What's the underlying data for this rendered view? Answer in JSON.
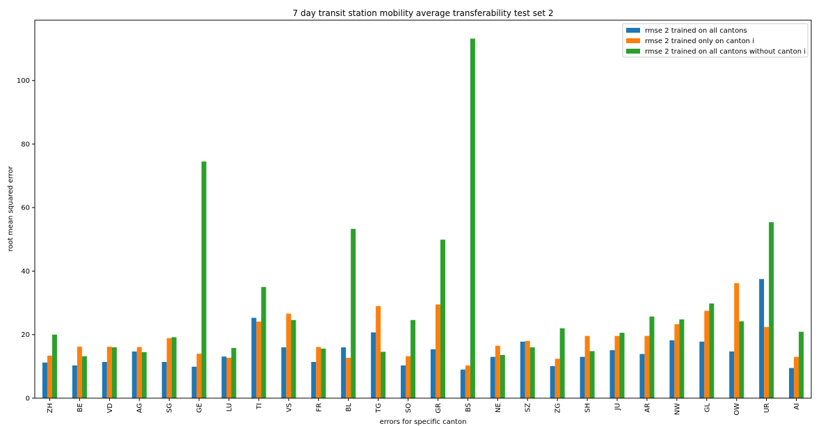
{
  "chart_data": {
    "type": "bar",
    "title": "7 day transit station mobility average transferability test set 2",
    "xlabel": "errors for specific canton",
    "ylabel": "root mean squared error",
    "ylim": [
      0,
      119
    ],
    "yticks": [
      0,
      20,
      40,
      60,
      80,
      100
    ],
    "grid": false,
    "legend_position": "top-right",
    "categories": [
      "ZH",
      "BE",
      "VD",
      "AG",
      "SG",
      "GE",
      "LU",
      "TI",
      "VS",
      "FR",
      "BL",
      "TG",
      "SO",
      "GR",
      "BS",
      "NE",
      "SZ",
      "ZG",
      "SH",
      "JU",
      "AR",
      "NW",
      "GL",
      "OW",
      "UR",
      "AI"
    ],
    "series": [
      {
        "name": "rmse 2 trained on all cantons",
        "color": "#1f77b4",
        "values": [
          11.2,
          10.3,
          11.4,
          14.7,
          11.4,
          9.9,
          13.1,
          25.3,
          16.0,
          11.4,
          16.0,
          20.7,
          10.3,
          15.4,
          9.0,
          13.0,
          17.8,
          10.1,
          13.0,
          15.1,
          13.9,
          18.2,
          17.8,
          14.7,
          37.5,
          9.5
        ]
      },
      {
        "name": "rmse 2 trained only on canton i",
        "color": "#ff7f0e",
        "values": [
          13.4,
          16.2,
          16.2,
          16.1,
          18.9,
          14.0,
          12.7,
          24.1,
          26.6,
          16.1,
          12.7,
          29.0,
          13.2,
          29.5,
          10.3,
          16.5,
          18.0,
          12.4,
          19.6,
          19.6,
          19.6,
          23.3,
          27.5,
          36.2,
          22.4,
          13.0
        ]
      },
      {
        "name": "rmse 2 trained on all cantons without canton i",
        "color": "#2ca02c",
        "values": [
          20.0,
          13.2,
          16.0,
          14.5,
          19.2,
          74.5,
          15.8,
          35.0,
          24.6,
          15.6,
          53.3,
          14.6,
          24.6,
          49.9,
          113.2,
          13.6,
          16.0,
          22.0,
          14.8,
          20.6,
          25.7,
          24.8,
          29.8,
          24.2,
          55.4,
          20.9
        ]
      }
    ]
  }
}
